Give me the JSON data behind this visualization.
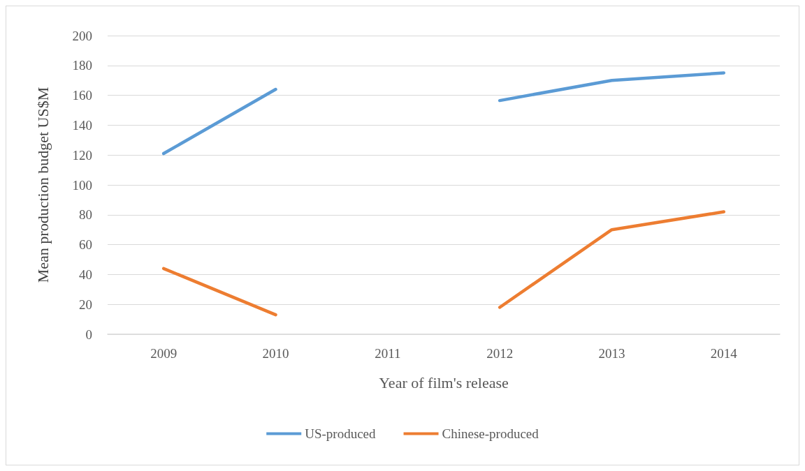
{
  "chart_data": {
    "type": "line",
    "xlabel": "Year of film's release",
    "ylabel": "Mean production budget US$M",
    "categories": [
      "2009",
      "2010",
      "2011",
      "2012",
      "2013",
      "2014"
    ],
    "series": [
      {
        "name": "US-produced",
        "color": "#5b9bd5",
        "values": [
          121,
          164,
          null,
          156.5,
          170,
          175
        ]
      },
      {
        "name": "Chinese-produced",
        "color": "#ed7d31",
        "values": [
          44,
          13,
          null,
          18,
          70,
          82
        ]
      }
    ],
    "ylim": [
      0,
      200
    ],
    "yticks": [
      0,
      20,
      40,
      60,
      80,
      100,
      120,
      140,
      160,
      180,
      200
    ],
    "grid": "y",
    "legend": "bottom",
    "marker": "none",
    "line_style": "solid"
  }
}
